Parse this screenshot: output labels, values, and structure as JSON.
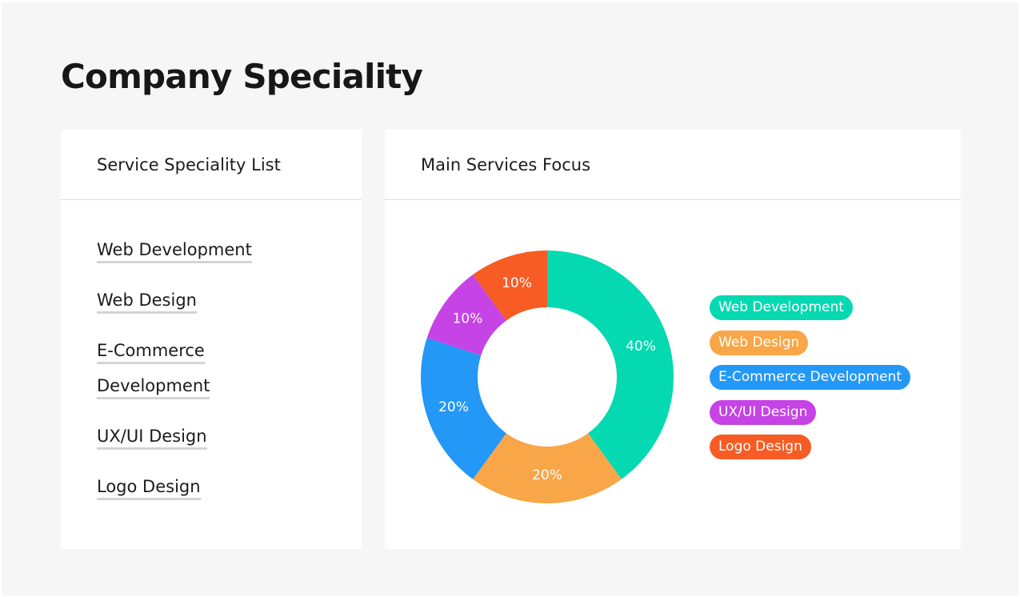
{
  "page": {
    "title": "Company Speciality"
  },
  "services_card": {
    "title": "Service Speciality List",
    "items": [
      "Web Development",
      "Web Design",
      "E-Commerce Development",
      "UX/UI Design",
      "Logo Design"
    ]
  },
  "focus_card": {
    "title": "Main Services Focus"
  },
  "chart_data": {
    "type": "pie",
    "style": "donut",
    "title": "",
    "legend_position": "right",
    "slices": [
      {
        "label": "Web Development",
        "value": 40,
        "display": "40%",
        "color": "#05D9B1"
      },
      {
        "label": "Web Design",
        "value": 20,
        "display": "20%",
        "color": "#F8A647"
      },
      {
        "label": "E-Commerce Development",
        "value": 20,
        "display": "20%",
        "color": "#2398F6"
      },
      {
        "label": "UX/UI Design",
        "value": 10,
        "display": "10%",
        "color": "#C643E5"
      },
      {
        "label": "Logo Design",
        "value": 10,
        "display": "10%",
        "color": "#F65C24"
      }
    ]
  }
}
